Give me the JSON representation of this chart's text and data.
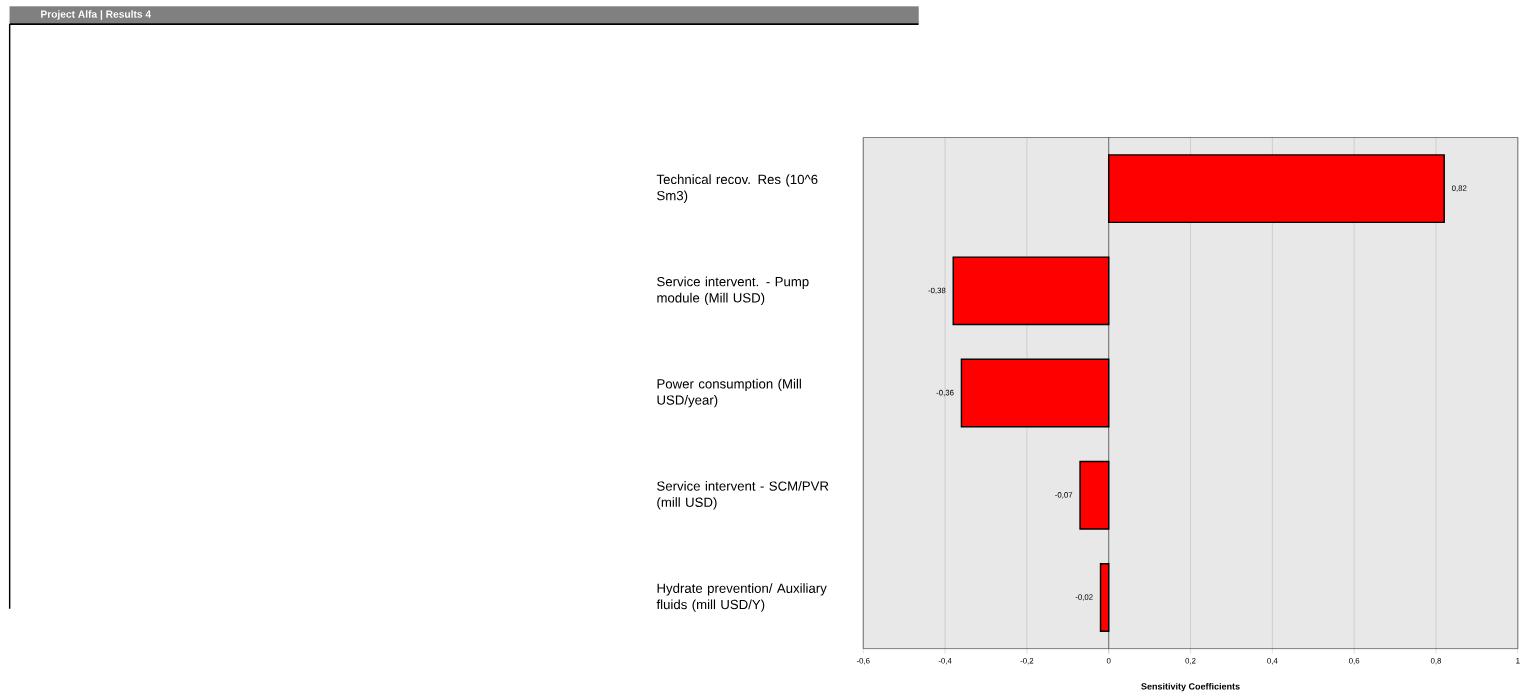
{
  "chart_data": {
    "type": "bar",
    "orientation": "horizontal",
    "title": "Project Alfa | Results 4",
    "categories": [
      "Technical recov. Res (10^6 Sm3)",
      "Service intervent. - Pump module (Mill USD)",
      "Power consumption (Mill USD/year)",
      "Service intervent - SCM/PVR (mill USD)",
      "Hydrate prevention/ Auxiliary fluids (mill USD/Y)"
    ],
    "values": [
      0.82,
      -0.38,
      -0.36,
      -0.07,
      -0.02
    ],
    "value_labels": [
      "0,82",
      "-0,38",
      "-0,36",
      "-0,07",
      "-0,02"
    ],
    "color": "#ff0000",
    "xlabel": "Sensitivity Coefficients",
    "xlim": [
      -0.6,
      1
    ],
    "xticks": [
      {
        "value": -0.6,
        "label": "-0,6"
      },
      {
        "value": -0.4,
        "label": "-0,4"
      },
      {
        "value": -0.2,
        "label": "-0,2"
      },
      0,
      {
        "value": 0.2,
        "label": "0,2"
      },
      {
        "value": 0.4,
        "label": "0,4"
      },
      {
        "value": 0.6,
        "label": "0,6"
      },
      {
        "value": 0.8,
        "label": "0,8"
      },
      1
    ],
    "grid": "x"
  }
}
